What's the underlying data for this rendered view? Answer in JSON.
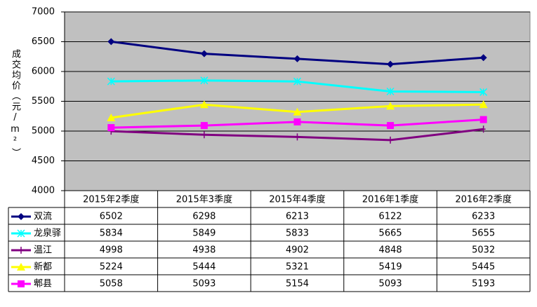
{
  "chart_data": {
    "type": "line",
    "y_label": "成交均价（元/m²）",
    "categories": [
      "2015年2季度",
      "2015年3季度",
      "2015年4季度",
      "2016年1季度",
      "2016年2季度"
    ],
    "series": [
      {
        "name": "双流",
        "color": "#000080",
        "marker": "diamond",
        "values": [
          6502,
          6298,
          6213,
          6122,
          6233
        ]
      },
      {
        "name": "龙泉驿",
        "color": "#00ffff",
        "marker": "star",
        "values": [
          5834,
          5849,
          5833,
          5665,
          5655
        ]
      },
      {
        "name": "温江",
        "color": "#800080",
        "marker": "plus",
        "values": [
          4998,
          4938,
          4902,
          4848,
          5032
        ]
      },
      {
        "name": "新都",
        "color": "#ffff00",
        "marker": "triangle",
        "values": [
          5224,
          5444,
          5321,
          5419,
          5445
        ]
      },
      {
        "name": "郫县",
        "color": "#ff00ff",
        "marker": "square",
        "values": [
          5058,
          5093,
          5154,
          5093,
          5193
        ]
      }
    ],
    "ylim": [
      4000,
      7000
    ],
    "yticks": [
      4000,
      4500,
      5000,
      5500,
      6000,
      6500,
      7000
    ],
    "grid": true,
    "plot_background": "#c0c0c0",
    "data_table": true
  }
}
